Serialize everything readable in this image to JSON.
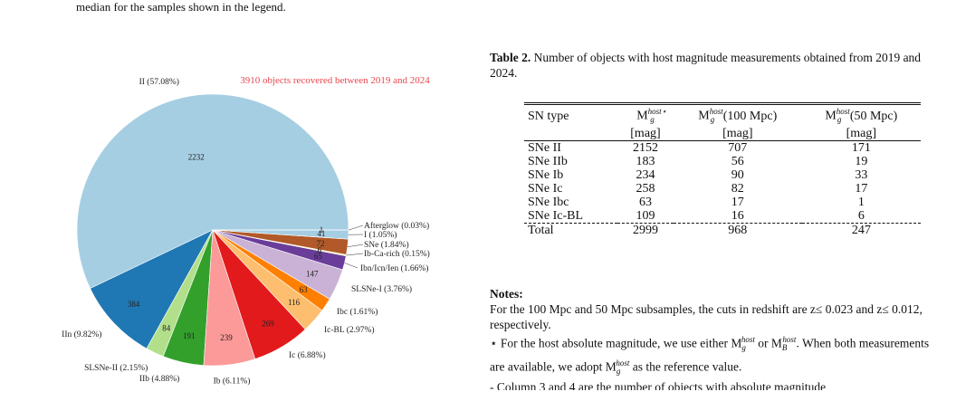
{
  "figure_caption_tail": "median for the samples shown in the legend.",
  "chart_data": {
    "type": "pie",
    "title": "3910 objects recovered between 2019 and 2024",
    "title_color": "#e8474f",
    "slices": [
      {
        "label": "II (57.08%)",
        "value": 2232,
        "color": "#a6cee3"
      },
      {
        "label": "IIn (9.82%)",
        "value": 384,
        "color": "#1f78b4"
      },
      {
        "label": "SLSNe-II (2.15%)",
        "value": 84,
        "color": "#b2df8a"
      },
      {
        "label": "IIb (4.88%)",
        "value": 191,
        "color": "#33a02c"
      },
      {
        "label": "Ib (6.11%)",
        "value": 239,
        "color": "#fb9a99"
      },
      {
        "label": "Ic (6.88%)",
        "value": 269,
        "color": "#e31a1c"
      },
      {
        "label": "Ic-BL (2.97%)",
        "value": 116,
        "color": "#fdbf6f"
      },
      {
        "label": "Ibc (1.61%)",
        "value": 63,
        "color": "#ff7f00"
      },
      {
        "label": "SLSNe-I (3.76%)",
        "value": 147,
        "color": "#cab2d6"
      },
      {
        "label": "Ibn/Icn/Ien (1.66%)",
        "value": 65,
        "color": "#6a3d9a"
      },
      {
        "label": "Ib-Ca-rich (0.15%)",
        "value": 6,
        "color": "#ffff99"
      },
      {
        "label": "SNe (1.84%)",
        "value": 72,
        "color": "#b15928"
      },
      {
        "label": "I (1.05%)",
        "value": 41,
        "color": "#a6cee3"
      },
      {
        "label": "Afterglow (0.03%)",
        "value": 1,
        "color": "#1f78b4"
      }
    ]
  },
  "table": {
    "caption_label": "Table 2.",
    "caption_text": "Number of objects with host magnitude measurements obtained from 2019 and 2024.",
    "headers": [
      "SN type",
      "M",
      "M",
      "M"
    ],
    "header_sub": [
      "",
      "g",
      "g",
      "g"
    ],
    "header_sup": [
      "",
      "host⋆",
      "host",
      "host"
    ],
    "header_extra": [
      "",
      "",
      " (100 Mpc)",
      " (50 Mpc)"
    ],
    "units": [
      "",
      "[mag]",
      "[mag]",
      "[mag]"
    ],
    "rows": [
      [
        "SNe II",
        "2152",
        "707",
        "171"
      ],
      [
        "SNe IIb",
        "183",
        "56",
        "19"
      ],
      [
        "SNe Ib",
        "234",
        "90",
        "33"
      ],
      [
        "SNe Ic",
        "258",
        "82",
        "17"
      ],
      [
        "SNe Ibc",
        "63",
        "17",
        "1"
      ],
      [
        "SNe Ic-BL",
        "109",
        "16",
        "6"
      ]
    ],
    "total": [
      "Total",
      "2999",
      "968",
      "247"
    ]
  },
  "notes": {
    "title": "Notes:",
    "p1": "For the 100 Mpc and 50 Mpc subsamples, the cuts in redshift are z≤ 0.023 and z≤ 0.012, respectively.",
    "p2a": "⋆ For the host absolute magnitude, we use either M",
    "p2b": " or M",
    "p2c": ". When both measurements are available, we adopt M",
    "p2d": " as the reference value.",
    "p3": "- Column 3 and 4 are the number of objects with absolute magnitude"
  }
}
